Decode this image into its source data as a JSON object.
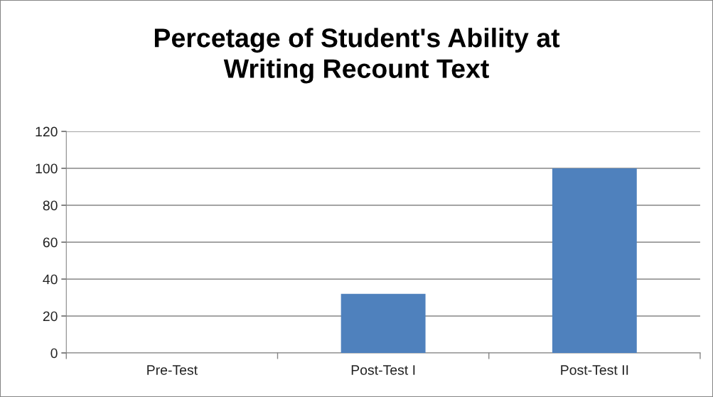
{
  "chart_data": {
    "type": "bar",
    "title": "Percetage of Student's Ability at\nWriting Recount Text",
    "categories": [
      "Pre-Test",
      "Post-Test I",
      "Post-Test II"
    ],
    "values": [
      0,
      32,
      100
    ],
    "color": "#4f81bd",
    "ylim": [
      0,
      120
    ],
    "yticks": [
      0,
      20,
      40,
      60,
      80,
      100,
      120
    ],
    "grid": "y",
    "legend": false
  }
}
